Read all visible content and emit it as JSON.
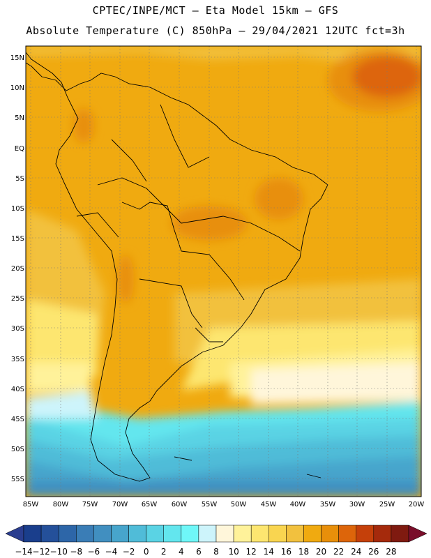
{
  "header": {
    "line1": "CPTEC/INPE/MCT –  Eta Model 15km – GFS",
    "line2": "Absolute Temperature (C) 850hPa – 29/04/2021 12UTC fct=3h"
  },
  "axes": {
    "lat_labels": [
      "15N",
      "10N",
      "5N",
      "EQ",
      "5S",
      "10S",
      "15S",
      "20S",
      "25S",
      "30S",
      "35S",
      "40S",
      "45S",
      "50S",
      "55S"
    ],
    "lon_labels": [
      "85W",
      "80W",
      "75W",
      "70W",
      "65W",
      "60W",
      "55W",
      "50W",
      "45W",
      "40W",
      "35W",
      "30W",
      "25W",
      "20W"
    ]
  },
  "colorbar": {
    "labels": [
      "-14",
      "-12",
      "-10",
      "-8",
      "-6",
      "-4",
      "-2",
      "0",
      "2",
      "4",
      "6",
      "8",
      "10",
      "12",
      "14",
      "16",
      "18",
      "20",
      "22",
      "24",
      "26",
      "28"
    ],
    "colors": [
      "#1a3e8c",
      "#24509a",
      "#2d66a8",
      "#3a7db6",
      "#418fc0",
      "#47a5cc",
      "#50bcd8",
      "#5ad3e4",
      "#63e6ee",
      "#6ff7f8",
      "#cdf4fb",
      "#fff6da",
      "#fff29a",
      "#fde670",
      "#f9d550",
      "#f2c13e",
      "#f0aa10",
      "#e88f0a",
      "#dd650a",
      "#c5400a",
      "#a52a0c",
      "#7f1a10"
    ],
    "under_color": "#2a3d8f",
    "over_color": "#7a0d2a"
  }
}
